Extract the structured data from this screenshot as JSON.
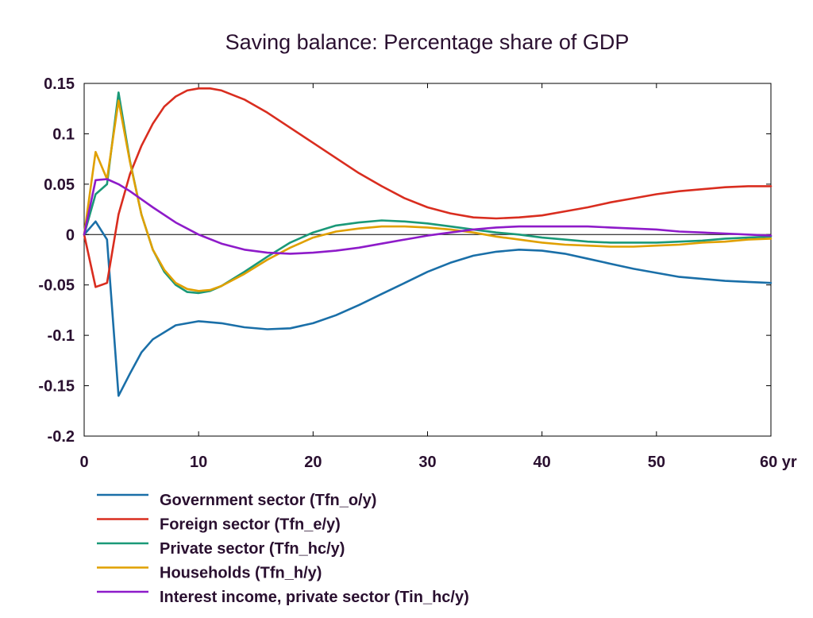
{
  "chart_data": {
    "type": "line",
    "title": "Saving balance: Percentage share of GDP",
    "xlabel": "",
    "ylabel": "",
    "x_unit": "yr",
    "xlim": [
      0,
      60
    ],
    "ylim": [
      -0.2,
      0.15
    ],
    "x_ticks": [
      0,
      10,
      20,
      30,
      40,
      50,
      60
    ],
    "x_tick_labels": [
      "0",
      "10",
      "20",
      "30",
      "40",
      "50",
      "60 yr"
    ],
    "y_ticks": [
      0.15,
      0.1,
      0.05,
      0,
      -0.05,
      -0.1,
      -0.15,
      -0.2
    ],
    "y_tick_labels": [
      "0.15",
      "0.1",
      "0.05",
      "0",
      "-0.05",
      "-0.1",
      "-0.15",
      "-0.2"
    ],
    "zero_line": true,
    "grid": false,
    "legend_position": "bottom-left",
    "series": [
      {
        "name": "Government sector (Tfn_o/y)",
        "color": "#1a6fa8",
        "x": [
          0,
          1,
          2,
          3,
          4,
          5,
          6,
          8,
          10,
          12,
          14,
          16,
          18,
          20,
          22,
          24,
          26,
          28,
          30,
          32,
          34,
          36,
          38,
          40,
          42,
          44,
          46,
          48,
          50,
          52,
          54,
          56,
          58,
          60
        ],
        "y": [
          0,
          0.013,
          -0.005,
          -0.16,
          -0.138,
          -0.117,
          -0.104,
          -0.09,
          -0.086,
          -0.088,
          -0.092,
          -0.094,
          -0.093,
          -0.088,
          -0.08,
          -0.07,
          -0.059,
          -0.048,
          -0.037,
          -0.028,
          -0.021,
          -0.017,
          -0.015,
          -0.016,
          -0.019,
          -0.024,
          -0.029,
          -0.034,
          -0.038,
          -0.042,
          -0.044,
          -0.046,
          -0.047,
          -0.048
        ]
      },
      {
        "name": "Foreign sector (Tfn_e/y)",
        "color": "#d92d1f",
        "x": [
          0,
          1,
          2,
          3,
          4,
          5,
          6,
          7,
          8,
          9,
          10,
          11,
          12,
          14,
          16,
          18,
          20,
          22,
          24,
          26,
          28,
          30,
          32,
          34,
          36,
          38,
          40,
          42,
          44,
          46,
          48,
          50,
          52,
          54,
          56,
          58,
          60
        ],
        "y": [
          0,
          -0.052,
          -0.048,
          0.02,
          0.06,
          0.088,
          0.11,
          0.127,
          0.137,
          0.143,
          0.145,
          0.145,
          0.143,
          0.134,
          0.121,
          0.106,
          0.091,
          0.076,
          0.061,
          0.048,
          0.036,
          0.027,
          0.021,
          0.017,
          0.016,
          0.017,
          0.019,
          0.023,
          0.027,
          0.032,
          0.036,
          0.04,
          0.043,
          0.045,
          0.047,
          0.048,
          0.048
        ]
      },
      {
        "name": "Private sector (Tfn_hc/y)",
        "color": "#1a9978",
        "x": [
          0,
          1,
          2,
          3,
          4,
          5,
          6,
          7,
          8,
          9,
          10,
          11,
          12,
          14,
          16,
          18,
          20,
          22,
          24,
          26,
          28,
          30,
          32,
          34,
          36,
          38,
          40,
          42,
          44,
          46,
          48,
          50,
          52,
          54,
          56,
          58,
          60
        ],
        "y": [
          0,
          0.04,
          0.05,
          0.141,
          0.073,
          0.02,
          -0.015,
          -0.037,
          -0.05,
          -0.057,
          -0.058,
          -0.056,
          -0.051,
          -0.037,
          -0.022,
          -0.008,
          0.002,
          0.009,
          0.012,
          0.014,
          0.013,
          0.011,
          0.008,
          0.005,
          0.002,
          0,
          -0.003,
          -0.005,
          -0.007,
          -0.008,
          -0.008,
          -0.008,
          -0.007,
          -0.006,
          -0.004,
          -0.003,
          -0.002
        ]
      },
      {
        "name": "Households (Tfn_h/y)",
        "color": "#e0a000",
        "x": [
          0,
          1,
          2,
          3,
          4,
          5,
          6,
          7,
          8,
          9,
          10,
          11,
          12,
          14,
          16,
          18,
          20,
          22,
          24,
          26,
          28,
          30,
          32,
          34,
          36,
          38,
          40,
          42,
          44,
          46,
          48,
          50,
          52,
          54,
          56,
          58,
          60
        ],
        "y": [
          0,
          0.082,
          0.055,
          0.133,
          0.072,
          0.02,
          -0.015,
          -0.035,
          -0.048,
          -0.054,
          -0.056,
          -0.055,
          -0.051,
          -0.039,
          -0.025,
          -0.013,
          -0.003,
          0.003,
          0.006,
          0.008,
          0.008,
          0.007,
          0.005,
          0.002,
          -0.002,
          -0.005,
          -0.008,
          -0.01,
          -0.011,
          -0.012,
          -0.012,
          -0.011,
          -0.01,
          -0.008,
          -0.007,
          -0.005,
          -0.004
        ]
      },
      {
        "name": "Interest income, private sector (Tin_hc/y)",
        "color": "#8e1bc9",
        "x": [
          0,
          1,
          2,
          3,
          4,
          6,
          8,
          10,
          12,
          14,
          16,
          18,
          20,
          22,
          24,
          26,
          28,
          30,
          32,
          34,
          36,
          38,
          40,
          42,
          44,
          46,
          48,
          50,
          52,
          54,
          56,
          58,
          60
        ],
        "y": [
          0,
          0.054,
          0.055,
          0.05,
          0.043,
          0.027,
          0.012,
          0,
          -0.009,
          -0.015,
          -0.018,
          -0.019,
          -0.018,
          -0.016,
          -0.013,
          -0.009,
          -0.005,
          -0.001,
          0.002,
          0.005,
          0.007,
          0.008,
          0.008,
          0.008,
          0.008,
          0.007,
          0.006,
          0.005,
          0.003,
          0.002,
          0.001,
          0,
          -0.001
        ]
      }
    ]
  }
}
